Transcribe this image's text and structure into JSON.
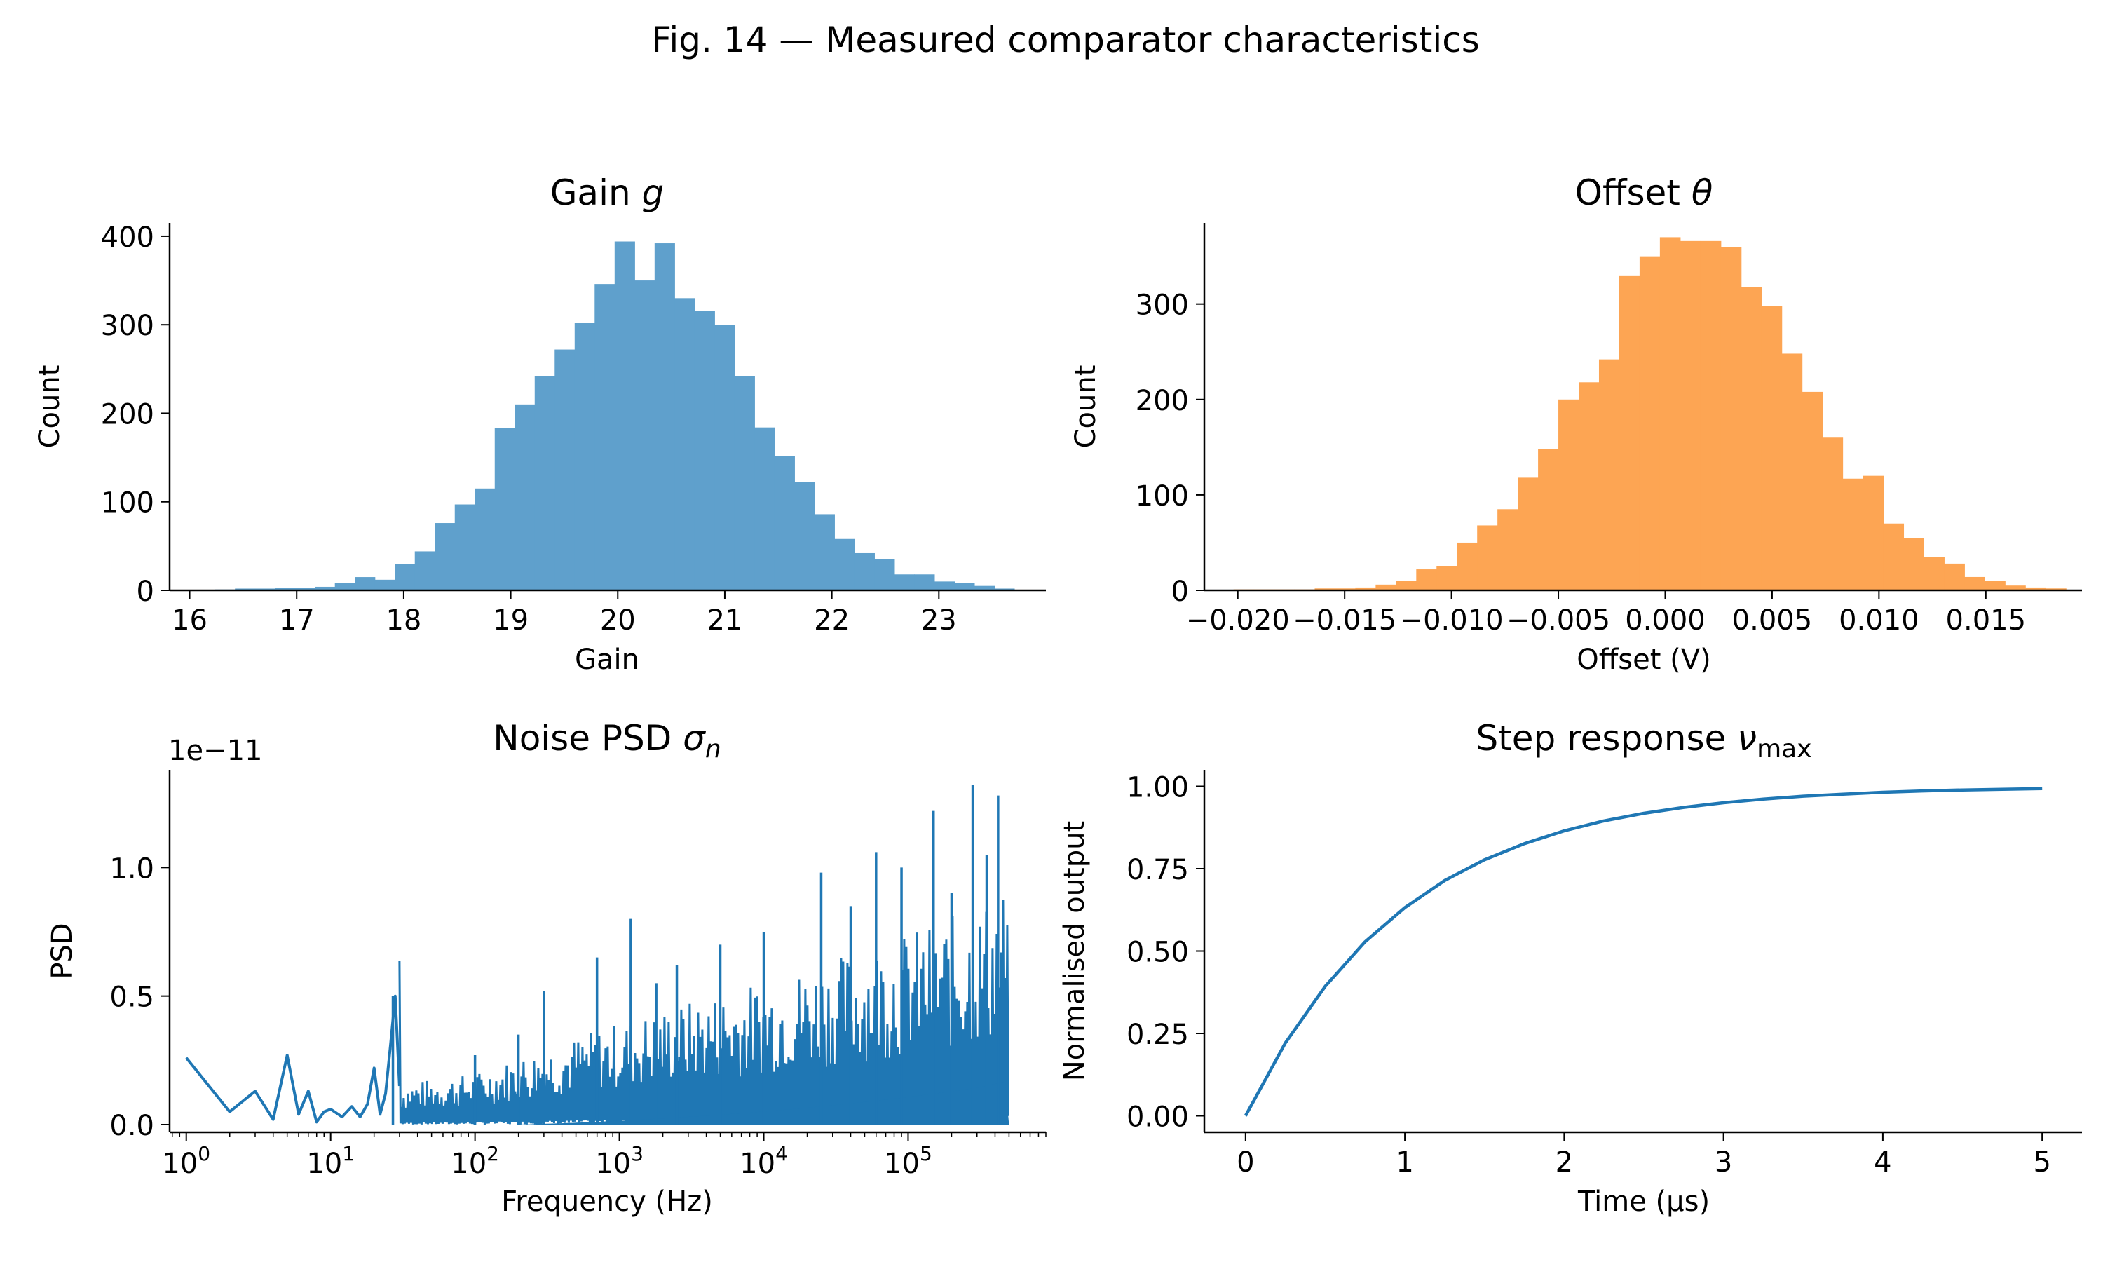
{
  "figure": {
    "title": "Fig. 14 — Measured comparator characteristics"
  },
  "chart_data": [
    {
      "id": "gain",
      "type": "bar",
      "title_text": "Gain ",
      "title_symbol": "g",
      "xlabel": "Gain",
      "ylabel": "Count",
      "xlim": [
        15.8,
        24.0
      ],
      "ylim": [
        0,
        415
      ],
      "xticks": [
        16,
        17,
        18,
        19,
        20,
        21,
        22,
        23
      ],
      "xtick_labels": [
        "16",
        "17",
        "18",
        "19",
        "20",
        "21",
        "22",
        "23"
      ],
      "yticks": [
        0,
        100,
        200,
        300,
        400
      ],
      "ytick_labels": [
        "0",
        "100",
        "200",
        "300",
        "400"
      ],
      "color": "#5fa0cc",
      "bin_start": 16.05,
      "bin_width": 0.1867,
      "values": [
        0,
        1,
        2,
        2,
        3,
        3,
        4,
        8,
        15,
        12,
        30,
        44,
        76,
        97,
        115,
        183,
        210,
        242,
        272,
        302,
        346,
        394,
        350,
        392,
        330,
        316,
        300,
        242,
        184,
        152,
        122,
        86,
        58,
        42,
        35,
        18,
        18,
        10,
        8,
        5,
        2
      ]
    },
    {
      "id": "offset",
      "type": "bar",
      "title_text": "Offset ",
      "title_symbol": "θ",
      "xlabel": "Offset (V)",
      "ylabel": "Count",
      "xlim": [
        -0.0215,
        0.0195
      ],
      "ylim": [
        0,
        385
      ],
      "xticks": [
        -0.02,
        -0.015,
        -0.01,
        -0.005,
        0.0,
        0.005,
        0.01,
        0.015
      ],
      "xtick_labels": [
        "−0.020",
        "−0.015",
        "−0.010",
        "−0.005",
        "0.000",
        "0.005",
        "0.010",
        "0.015"
      ],
      "yticks": [
        0,
        100,
        200,
        300
      ],
      "ytick_labels": [
        "0",
        "100",
        "200",
        "300"
      ],
      "color": "#fda553",
      "bin_start": -0.0202,
      "bin_width": 0.00095,
      "values": [
        1,
        1,
        1,
        1,
        2,
        2,
        3,
        6,
        10,
        22,
        25,
        50,
        68,
        85,
        118,
        148,
        200,
        218,
        242,
        330,
        350,
        370,
        366,
        366,
        360,
        318,
        298,
        248,
        208,
        160,
        117,
        120,
        70,
        55,
        35,
        28,
        14,
        10,
        5,
        3,
        2
      ]
    },
    {
      "id": "noise",
      "type": "line",
      "title_text": "Noise PSD ",
      "title_symbol": "σ",
      "title_subscript": "n",
      "xlabel": "Frequency (Hz)",
      "ylabel": "PSD",
      "xscale": "log",
      "xlim": [
        0.75,
        900000
      ],
      "ylim": [
        -3e-13,
        1.38e-11
      ],
      "offset_label": "1e−11",
      "xticks_exponents": [
        0,
        1,
        2,
        3,
        4,
        5
      ],
      "yticks": [
        0.0,
        5e-12,
        1e-11
      ],
      "ytick_labels": [
        "0.0",
        "0.5",
        "1.0"
      ],
      "color": "#1f77b4",
      "points": [
        [
          1,
          2.6e-12
        ],
        [
          2,
          5e-13
        ],
        [
          3,
          1.3e-12
        ],
        [
          4,
          2e-13
        ],
        [
          5,
          2.7e-12
        ],
        [
          6,
          4e-13
        ],
        [
          7,
          1.3e-12
        ],
        [
          8,
          1e-13
        ],
        [
          9,
          5e-13
        ],
        [
          10,
          6e-13
        ],
        [
          12,
          3e-13
        ],
        [
          14,
          7e-13
        ],
        [
          16,
          3e-13
        ],
        [
          18,
          8e-13
        ],
        [
          20,
          2.2e-12
        ],
        [
          22,
          4e-13
        ],
        [
          24,
          1.2e-12
        ],
        [
          26,
          3.1e-12
        ],
        [
          28,
          5e-12
        ],
        [
          30,
          1.5e-12
        ]
      ],
      "envelope": [
        [
          30,
          1.6e-12
        ],
        [
          100,
          2e-12
        ],
        [
          300,
          3e-12
        ],
        [
          1000,
          4e-12
        ],
        [
          3000,
          4.8e-12
        ],
        [
          10000,
          5.6e-12
        ],
        [
          30000,
          6.5e-12
        ],
        [
          100000,
          7.5e-12
        ],
        [
          300000,
          8.5e-12
        ],
        [
          500000,
          9.5e-12
        ]
      ],
      "spikes": [
        [
          27,
          5e-12
        ],
        [
          100,
          2.7e-12
        ],
        [
          200,
          3.5e-12
        ],
        [
          300,
          5.2e-12
        ],
        [
          700,
          6.5e-12
        ],
        [
          1200,
          8e-12
        ],
        [
          1800,
          5.5e-12
        ],
        [
          2500,
          6.2e-12
        ],
        [
          5000,
          7e-12
        ],
        [
          10000,
          7.5e-12
        ],
        [
          25000,
          9.8e-12
        ],
        [
          40000,
          8.5e-12
        ],
        [
          60000,
          1.06e-11
        ],
        [
          90000,
          1e-11
        ],
        [
          150000,
          1.22e-11
        ],
        [
          200000,
          9e-12
        ],
        [
          280000,
          1.32e-11
        ],
        [
          350000,
          1.05e-11
        ],
        [
          420000,
          1.28e-11
        ]
      ],
      "floor": 0.0
    },
    {
      "id": "step",
      "type": "line",
      "title_text": "Step response ",
      "title_symbol": "ν",
      "title_subscript": "max",
      "xlabel": "Time (µs)",
      "ylabel": "Normalised output",
      "xlim": [
        -0.25,
        5.25
      ],
      "ylim": [
        -0.05,
        1.05
      ],
      "xticks": [
        0,
        1,
        2,
        3,
        4,
        5
      ],
      "xtick_labels": [
        "0",
        "1",
        "2",
        "3",
        "4",
        "5"
      ],
      "yticks": [
        0,
        0.25,
        0.5,
        0.75,
        1.0
      ],
      "ytick_labels": [
        "0.00",
        "0.25",
        "0.50",
        "0.75",
        "1.00"
      ],
      "color": "#1f77b4",
      "x": [
        0,
        0.25,
        0.5,
        0.75,
        1,
        1.25,
        1.5,
        1.75,
        2,
        2.25,
        2.5,
        2.75,
        3,
        3.25,
        3.5,
        3.75,
        4,
        4.25,
        4.5,
        4.75,
        5
      ],
      "y": [
        0,
        0.221,
        0.393,
        0.528,
        0.632,
        0.714,
        0.777,
        0.826,
        0.865,
        0.895,
        0.918,
        0.936,
        0.95,
        0.961,
        0.97,
        0.976,
        0.982,
        0.986,
        0.989,
        0.991,
        0.993
      ]
    }
  ]
}
